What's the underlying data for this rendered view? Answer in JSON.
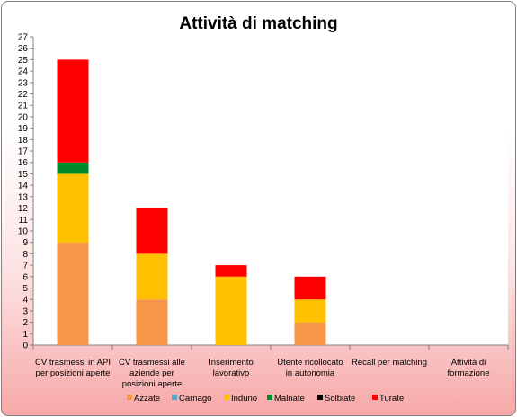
{
  "chart_data": {
    "type": "bar",
    "stacked": true,
    "title": "Attività di matching",
    "categories": [
      [
        "CV trasmessi in API",
        "per posizioni aperte"
      ],
      [
        "CV trasmessi alle",
        "aziende per",
        "posizioni aperte"
      ],
      [
        "Inserimento",
        "lavorativo"
      ],
      [
        "Utente ricollocato",
        "in autonomia"
      ],
      [
        "Recall per matching"
      ],
      [
        "Attività di",
        "formazione"
      ]
    ],
    "series": [
      {
        "name": "Azzate",
        "color": "#f79646",
        "values": [
          9,
          4,
          0,
          2,
          0,
          0
        ]
      },
      {
        "name": "Carnago",
        "color": "#4bacc6",
        "values": [
          0,
          0,
          0,
          0,
          0,
          0
        ]
      },
      {
        "name": "Induno",
        "color": "#ffc000",
        "values": [
          6,
          4,
          6,
          2,
          0,
          0
        ]
      },
      {
        "name": "Malnate",
        "color": "#00882b",
        "values": [
          1,
          0,
          0,
          0,
          0,
          0
        ]
      },
      {
        "name": "Solbiate",
        "color": "#000000",
        "values": [
          0,
          0,
          0,
          0,
          0,
          0
        ]
      },
      {
        "name": "Turate",
        "color": "#ff0000",
        "values": [
          9,
          4,
          1,
          2,
          0,
          0
        ]
      }
    ],
    "ylim": [
      0,
      27
    ],
    "ytick_step": 1,
    "grid": false,
    "legend": "bottom"
  }
}
